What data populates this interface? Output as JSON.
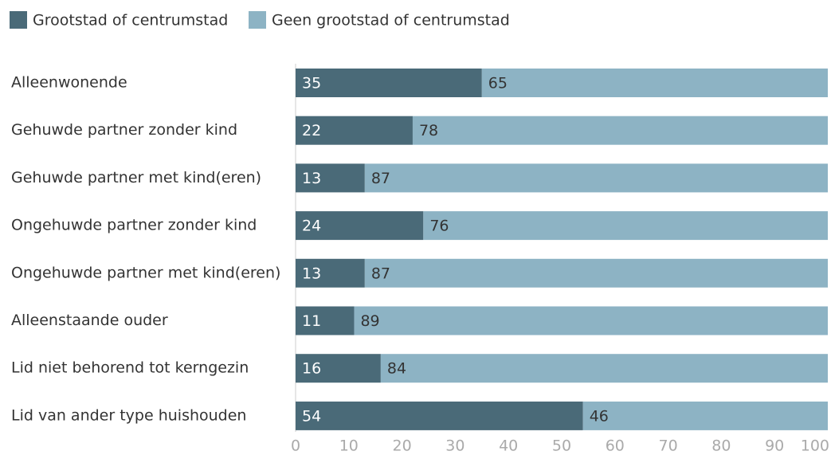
{
  "chart_data": {
    "type": "stacked-bar-horizontal",
    "categories": [
      "Alleenwonende",
      "Gehuwde partner zonder kind",
      "Gehuwde partner met kind(eren)",
      "Ongehuwde partner zonder kind",
      "Ongehuwde partner met kind(eren)",
      "Alleenstaande ouder",
      "Lid niet behorend tot kerngezin",
      "Lid van ander type huishouden"
    ],
    "series": [
      {
        "name": "Grootstad of centrumstad",
        "color": "#4a6a78",
        "values": [
          35,
          22,
          13,
          24,
          13,
          11,
          16,
          54
        ]
      },
      {
        "name": "Geen grootstad of centrumstad",
        "color": "#8db3c4",
        "values": [
          65,
          78,
          87,
          76,
          87,
          89,
          84,
          46
        ]
      }
    ],
    "xlim": [
      0,
      100
    ],
    "xticks": [
      0,
      10,
      20,
      30,
      40,
      50,
      60,
      70,
      80,
      90,
      100
    ],
    "legend": "top-left"
  }
}
